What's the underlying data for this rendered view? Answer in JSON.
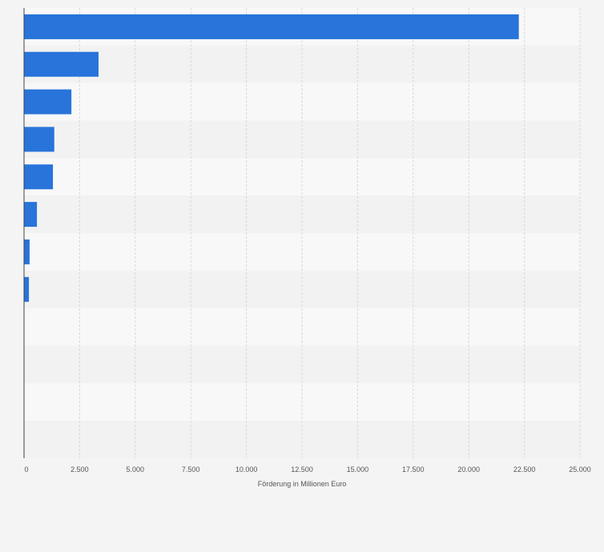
{
  "chart_data": {
    "type": "bar",
    "orientation": "horizontal",
    "title": "",
    "xlabel": "Förderung in Millionen Euro",
    "ylabel": "",
    "xlim": [
      0,
      25000
    ],
    "x_ticks": [
      0,
      2500,
      5000,
      7500,
      10000,
      12500,
      15000,
      17500,
      20000,
      22500,
      25000
    ],
    "x_tick_labels": [
      "0",
      "2.500",
      "5.000",
      "7.500",
      "10.000",
      "12.500",
      "15.000",
      "17.500",
      "20.000",
      "22.500",
      "25.000"
    ],
    "categories": [
      "",
      "",
      "",
      "",
      "",
      "",
      "",
      "",
      "",
      "",
      "",
      ""
    ],
    "values": [
      22250,
      3350,
      2130,
      1360,
      1300,
      580,
      250,
      220,
      0,
      0,
      0,
      0
    ],
    "grid": true,
    "legend": "none",
    "colors": {
      "bar": "#2874da",
      "band_light": "#f8f8f8",
      "band_dark": "#f2f2f2",
      "grid": "#d8d8d8",
      "axis": "#444444",
      "text": "#555555"
    }
  }
}
